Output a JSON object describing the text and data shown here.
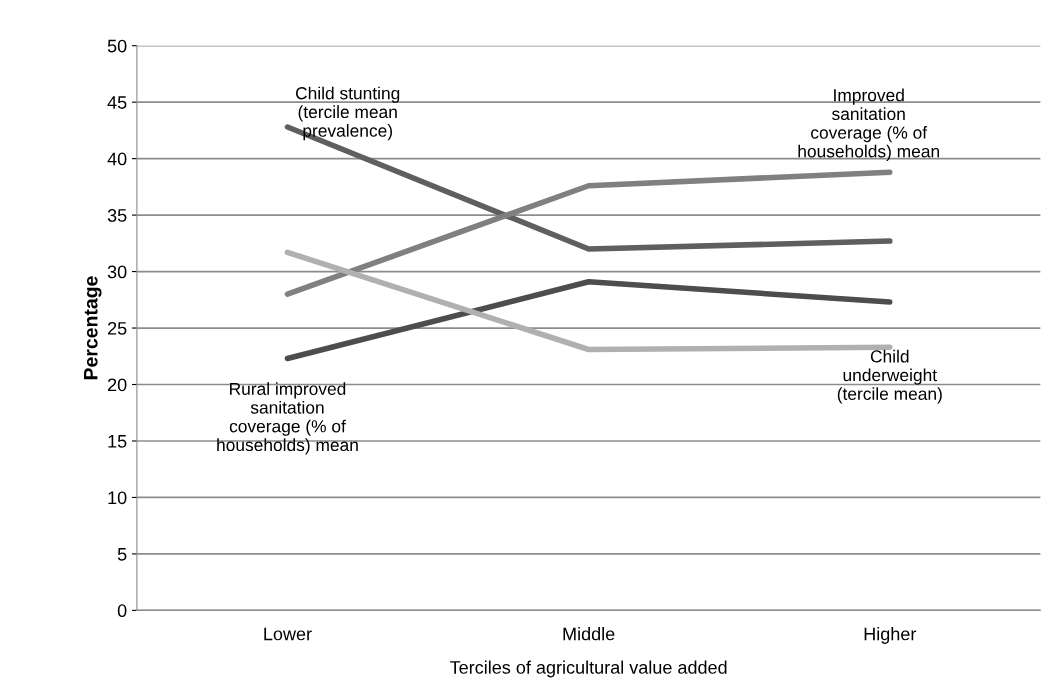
{
  "chart_data": {
    "type": "line",
    "xlabel": "Terciles of agricultural value added",
    "ylabel": "Percentage",
    "categories": [
      "Lower",
      "Middle",
      "Higher"
    ],
    "series": [
      {
        "name": "Child stunting (tercile mean prevalence)",
        "color": "#5f5f5f",
        "values": [
          42.8,
          32.0,
          32.7
        ]
      },
      {
        "name": "Improved sanitation coverage (% of households) mean",
        "color": "#808080",
        "values": [
          28.0,
          37.6,
          38.8
        ]
      },
      {
        "name": "Rural improved sanitation coverage (% of households) mean",
        "color": "#4d4d4d",
        "values": [
          22.3,
          29.1,
          27.3
        ]
      },
      {
        "name": "Child underweight (tercile mean)",
        "color": "#b0b0b0",
        "values": [
          31.7,
          23.1,
          23.3
        ]
      }
    ],
    "ylim": [
      0,
      50
    ],
    "yticks": [
      0,
      5,
      10,
      15,
      20,
      25,
      30,
      35,
      40,
      45,
      50
    ],
    "grid": "y",
    "legend": false,
    "marker": "none"
  }
}
